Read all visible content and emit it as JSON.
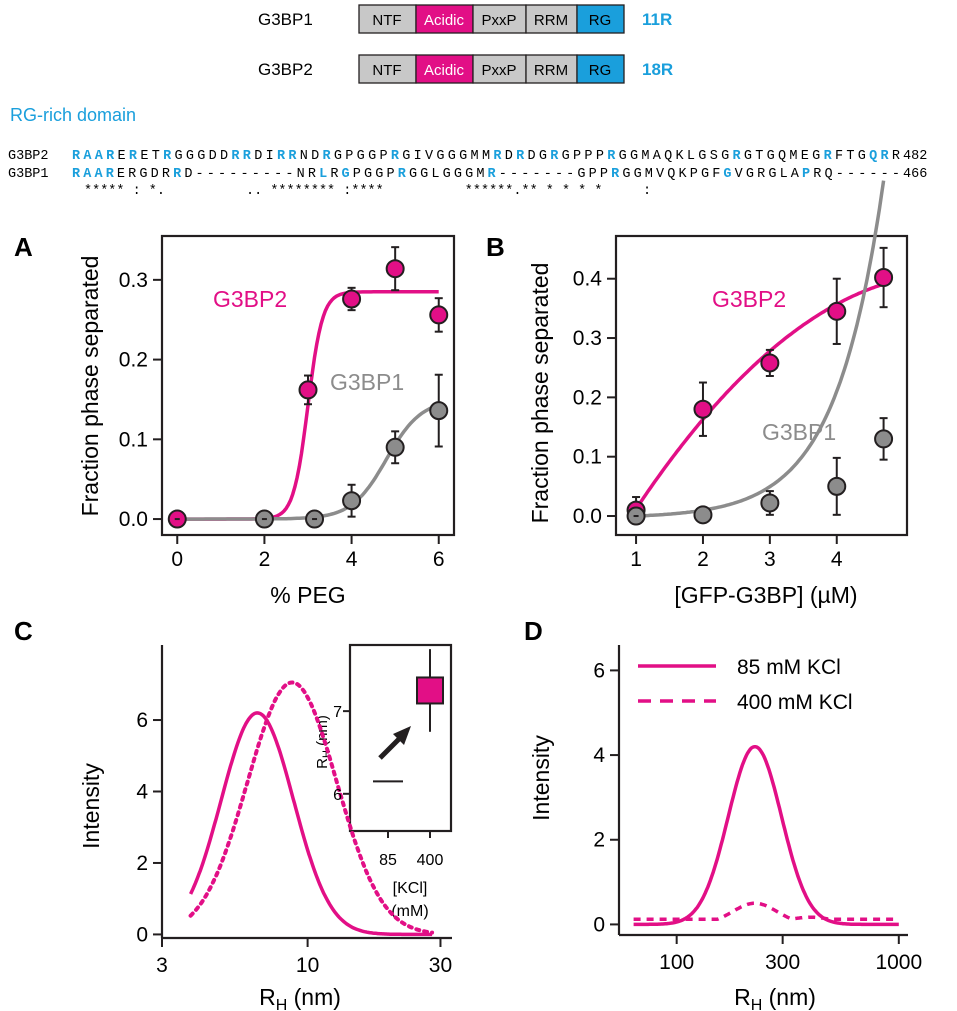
{
  "colors": {
    "magenta": "#e20f86",
    "gray": "#8c8c8c",
    "blue": "#1a9fdc",
    "domain_gray": "#c8c8c8",
    "ink": "#231f20"
  },
  "domains": {
    "rows": [
      {
        "protein": "G3BP1",
        "count": "11R"
      },
      {
        "protein": "G3BP2",
        "count": "18R"
      }
    ],
    "labels": [
      "NTF",
      "Acidic",
      "PxxP",
      "RRM",
      "RG"
    ]
  },
  "alignment": {
    "title": "RG-rich domain",
    "rows": [
      {
        "name": "G3BP2",
        "seq": "RAARERETRGGGDDRRDIRRNDRGPGGPRGIVGGGMMRDRDGRGPPPRGGMAQKLGSGRGTGQMEGRFTGQRR",
        "end": "482"
      },
      {
        "name": "G3BP1",
        "seq": "RAARERGDRRD---------NRLRGPGGPRGGLGGGMR-------GPPRGGMVQKPGFGVGRGLAPRQ------",
        "end": "466"
      }
    ],
    "conservation": "***** : *.          .. ******** :****          ******.** * * * *     :",
    "blue_positions": [
      [
        0,
        1,
        2,
        3,
        5,
        8,
        14,
        15,
        18,
        19,
        22,
        28,
        37,
        39,
        42,
        47,
        58,
        66,
        70,
        71
      ],
      [
        0,
        1,
        2,
        3,
        9,
        22,
        24,
        29,
        37,
        48,
        58,
        65
      ]
    ]
  },
  "chart_data": [
    {
      "panel": "A",
      "type": "scatter",
      "xlabel": "% PEG",
      "ylabel": "Fraction phase separated",
      "xlim": [
        -0.35,
        6.35
      ],
      "ylim": [
        -0.02,
        0.355
      ],
      "xticks": [
        0,
        2,
        4,
        6
      ],
      "yticks": [
        "0.0",
        "0.1",
        "0.2",
        "0.3"
      ],
      "series": [
        {
          "name": "G3BP2",
          "color": "magenta",
          "points": [
            [
              0,
              0
            ],
            [
              3,
              0.162
            ],
            [
              4,
              0.276
            ],
            [
              5,
              0.314
            ],
            [
              6,
              0.256
            ]
          ],
          "err": [
            0,
            0.018,
            0.014,
            0.027,
            0.021
          ],
          "fit": {
            "kind": "sigmoid",
            "top": 0.285,
            "mid": 3.0,
            "k": 6.0,
            "from": 0,
            "to": 6
          }
        },
        {
          "name": "G3BP1",
          "color": "gray",
          "points": [
            [
              2,
              0
            ],
            [
              3.15,
              0
            ],
            [
              4,
              0.023
            ],
            [
              5,
              0.09
            ],
            [
              6,
              0.136
            ]
          ],
          "err": [
            0,
            0,
            0.02,
            0.02,
            0.045
          ],
          "fit": {
            "kind": "sigmoid",
            "top": 0.15,
            "mid": 4.8,
            "k": 2.5,
            "from": 0,
            "to": 6
          }
        }
      ]
    },
    {
      "panel": "B",
      "type": "scatter",
      "xlabel": "[GFP-G3BP] (µM)",
      "ylabel": "Fraction phase separated",
      "xlim": [
        0.7,
        5.05
      ],
      "ylim": [
        -0.032,
        0.472
      ],
      "xticks": [
        1,
        2,
        3,
        4
      ],
      "yticks": [
        "0.0",
        "0.1",
        "0.2",
        "0.3",
        "0.4"
      ],
      "series": [
        {
          "name": "G3BP2",
          "color": "magenta",
          "points": [
            [
              1,
              0.01
            ],
            [
              2,
              0.18
            ],
            [
              3,
              0.258
            ],
            [
              4,
              0.345
            ],
            [
              4.7,
              0.402
            ]
          ],
          "err": [
            0.022,
            0.045,
            0.022,
            0.055,
            0.05
          ],
          "fit": {
            "kind": "poly",
            "coef": [
              -0.175,
              0.205,
              -0.018
            ],
            "from": 1,
            "to": 4.7
          }
        },
        {
          "name": "G3BP1",
          "color": "gray",
          "points": [
            [
              1,
              0
            ],
            [
              2,
              0.002
            ],
            [
              3,
              0.022
            ],
            [
              4,
              0.05
            ],
            [
              4.7,
              0.13
            ]
          ],
          "err": [
            0,
            0,
            0.02,
            0.048,
            0.035
          ],
          "fit": {
            "kind": "exp",
            "a": 0.0032,
            "b": 1.4,
            "c": 1.0,
            "from": 1,
            "to": 4.7
          }
        }
      ]
    },
    {
      "panel": "C",
      "type": "line",
      "xlabel": "R",
      "xlabel_sub": "H",
      "xlabel_unit": " (nm)",
      "ylabel": "Intensity",
      "xscale": "log",
      "xlim": [
        3,
        33
      ],
      "ylim": [
        -0.1,
        8.1
      ],
      "xticks": [
        3,
        10,
        30
      ],
      "yticks": [
        0,
        2,
        4,
        6
      ],
      "series": [
        {
          "name": "85 mM KCl",
          "style": "solid",
          "peak": 6.2,
          "center": 6.6,
          "sigma": 0.13
        },
        {
          "name": "400 mM KCl",
          "style": "dotted",
          "peak": 7.05,
          "center": 8.8,
          "sigma": 0.16
        }
      ],
      "inset": {
        "ylabel": "R",
        "ylabel_sub": "H",
        "ylabel_unit": " (nm)",
        "xlabel": "[KCl]",
        "xlabel_unit": "(mM)",
        "categories": [
          "85",
          "400"
        ],
        "yticks": [
          6,
          7
        ],
        "ylim": [
          5.55,
          7.8
        ],
        "values": [
          6.15,
          7.25
        ],
        "err": [
          0,
          0.5
        ]
      }
    },
    {
      "panel": "D",
      "type": "line",
      "xlabel": "R",
      "xlabel_sub": "H",
      "xlabel_unit": " (nm)",
      "ylabel": "Intensity",
      "xscale": "log",
      "xlim": [
        55,
        1100
      ],
      "ylim": [
        -0.25,
        6.6
      ],
      "xticks": [
        100,
        300,
        1000
      ],
      "yticks": [
        0,
        2,
        4,
        6
      ],
      "series": [
        {
          "name": "85 mM KCl",
          "style": "solid",
          "peak": 4.2,
          "center": 225,
          "sigma": 0.12
        },
        {
          "name": "400 mM KCl",
          "style": "dashed",
          "peak": 0.5,
          "center": 225,
          "sigma": 0.1,
          "baseline": 0.12,
          "bump": [
            0.15,
            400,
            0.1
          ]
        }
      ],
      "legend": "top-right"
    }
  ]
}
